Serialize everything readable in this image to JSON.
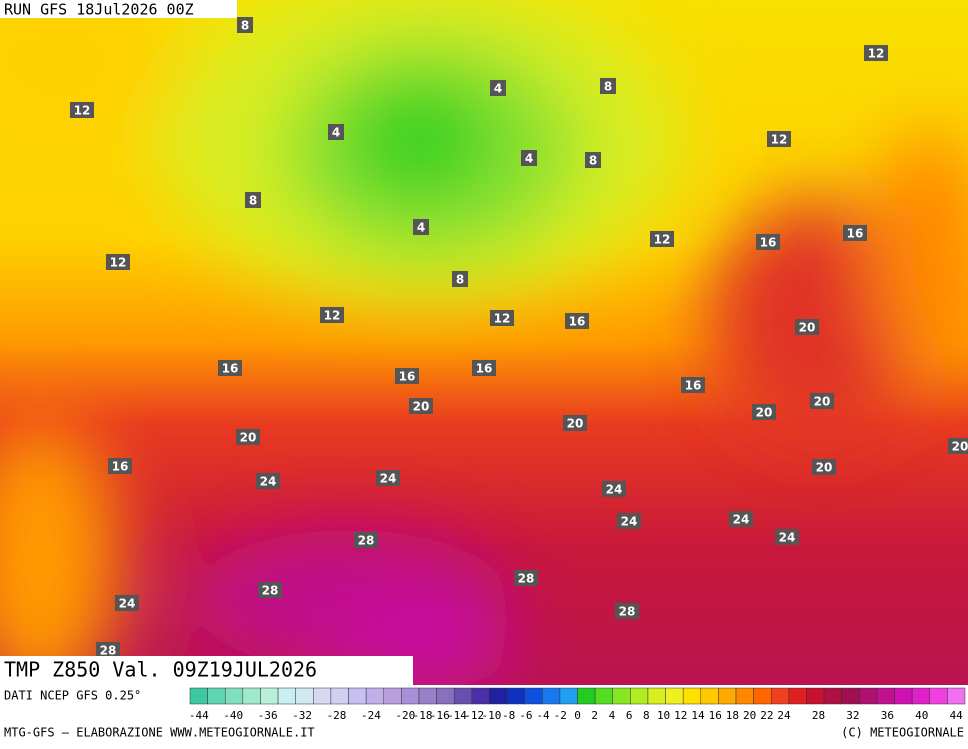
{
  "header": {
    "run": "RUN GFS 18Jul2026 00Z"
  },
  "title": "TMP Z850 Val. 09Z19JUL2026",
  "contour_labels": [
    "8",
    "12",
    "4",
    "4",
    "8",
    "12",
    "4",
    "8",
    "8",
    "12",
    "4",
    "12",
    "8",
    "12",
    "16",
    "16",
    "12",
    "12",
    "16",
    "20",
    "16",
    "16",
    "16",
    "16",
    "20",
    "20",
    "20",
    "20",
    "20",
    "20",
    "16",
    "20",
    "24",
    "24",
    "24",
    "24",
    "24",
    "24",
    "28",
    "28",
    "28",
    "28",
    "24",
    "28"
  ],
  "colorbar": {
    "source": "DATI NCEP GFS 0.25°",
    "labels": [
      -44,
      -40,
      -36,
      -32,
      -28,
      -24,
      -20,
      -18,
      -16,
      -14,
      -12,
      -10,
      -8,
      -6,
      -4,
      -2,
      0,
      2,
      4,
      6,
      8,
      10,
      12,
      14,
      16,
      18,
      20,
      22,
      24,
      28,
      32,
      36,
      40,
      44
    ],
    "colors": [
      "#3cc8a0",
      "#5fd6b0",
      "#7fe0c0",
      "#a0eacc",
      "#b8f0dc",
      "#c8f0f0",
      "#d0e8f0",
      "#d8d8f0",
      "#d0d0f0",
      "#c8c0f0",
      "#c0b0e8",
      "#b8a0e0",
      "#a890d8",
      "#9880c8",
      "#8870c0",
      "#6850b0",
      "#4830a8",
      "#2020a0",
      "#1030c0",
      "#1050e0",
      "#1878f0",
      "#20a0f0",
      "#22cc22",
      "#55dd22",
      "#88e622",
      "#b0ee22",
      "#d8f020",
      "#f0f020",
      "#ffe000",
      "#ffc800",
      "#ffaa00",
      "#ff8800",
      "#ff6600",
      "#f04020",
      "#e02020",
      "#c81030",
      "#b01040",
      "#a01050",
      "#b01070",
      "#c01090",
      "#d010b0",
      "#e020c8",
      "#f040e0",
      "#f070f0"
    ]
  },
  "footer": {
    "left": "MTG-GFS — ELABORAZIONE WWW.METEOGIORNALE.IT",
    "right": "(C) METEOGIORNALE"
  }
}
